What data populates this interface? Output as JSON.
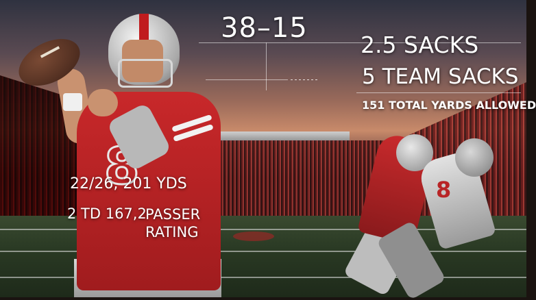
{
  "score": "38–15",
  "defense": {
    "sacks_individual": "2.5 SACKS",
    "team_sacks": "5 TEAM SACKS",
    "yards_allowed": "151 TOTAL YARDS ALLOWED"
  },
  "passing": {
    "line1": "22/26, 201 YDS",
    "line2_a": "2 TD 167,2",
    "line2_b": "PASSER RATING"
  },
  "jersey": {
    "qb_number": "8",
    "defender_number": "8"
  },
  "colors": {
    "jersey_red": "#c8282a",
    "helmet_silver": "#c8c8c8",
    "text": "#ffffff"
  }
}
